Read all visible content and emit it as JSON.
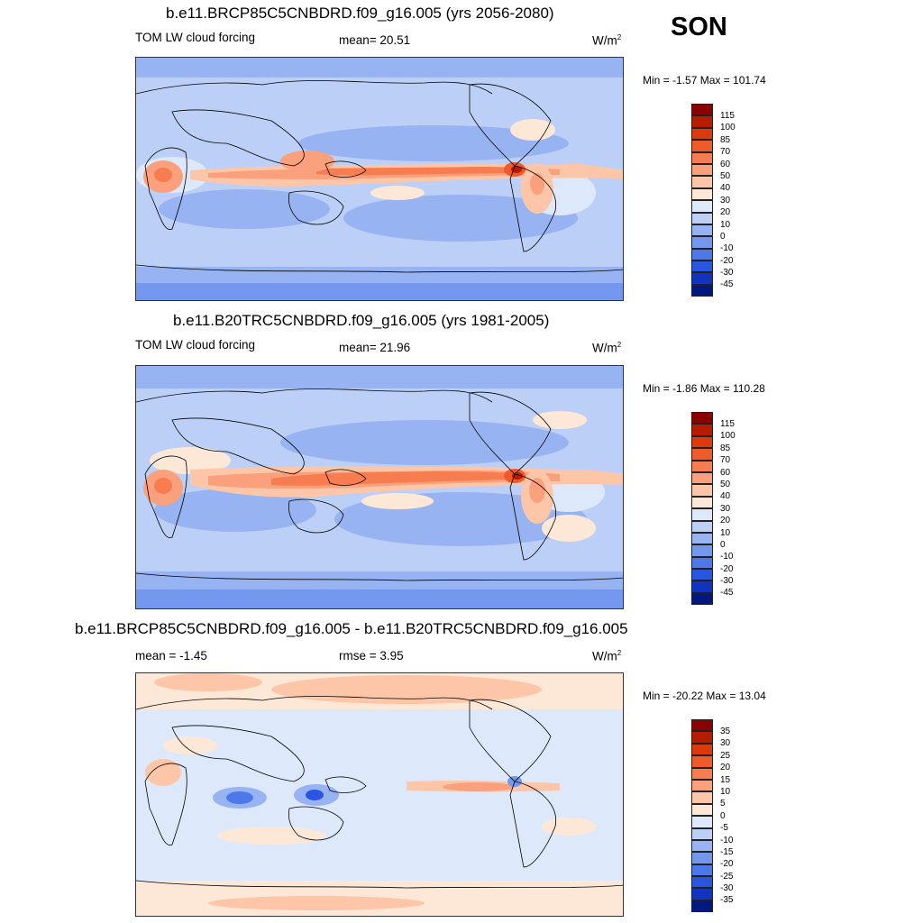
{
  "season": "SON",
  "panels": [
    {
      "title": "b.e11.BRCP85C5CNBDRD.f09_g16.005 (yrs 2056-2080)",
      "left_label": "TOM LW cloud forcing",
      "center_label": "mean=  20.51",
      "units": "W/m",
      "units_sup": "2",
      "minmax": "Min =  -1.57 Max = 101.74",
      "colorbar": {
        "labels": [
          "115",
          "100",
          "85",
          "70",
          "60",
          "50",
          "40",
          "30",
          "20",
          "10",
          "0",
          "-10",
          "-20",
          "-30",
          "-45"
        ],
        "colors": [
          "#8b0000",
          "#b81c00",
          "#dc3a0c",
          "#ef5a2a",
          "#f77c50",
          "#fba07c",
          "#fdc6a8",
          "#fde8d8",
          "#dde9fb",
          "#bcd0f7",
          "#97b3f1",
          "#7497ee",
          "#4d78ea",
          "#2a55e0",
          "#1233bf",
          "#02177f"
        ]
      }
    },
    {
      "title": "b.e11.B20TRC5CNBDRD.f09_g16.005 (yrs 1981-2005)",
      "left_label": "TOM LW cloud forcing",
      "center_label": "mean=  21.96",
      "units": "W/m",
      "units_sup": "2",
      "minmax": "Min =  -1.86 Max = 110.28",
      "colorbar": {
        "labels": [
          "115",
          "100",
          "85",
          "70",
          "60",
          "50",
          "40",
          "30",
          "20",
          "10",
          "0",
          "-10",
          "-20",
          "-30",
          "-45"
        ],
        "colors": [
          "#8b0000",
          "#b81c00",
          "#dc3a0c",
          "#ef5a2a",
          "#f77c50",
          "#fba07c",
          "#fdc6a8",
          "#fde8d8",
          "#dde9fb",
          "#bcd0f7",
          "#97b3f1",
          "#7497ee",
          "#4d78ea",
          "#2a55e0",
          "#1233bf",
          "#02177f"
        ]
      }
    },
    {
      "title": "b.e11.BRCP85C5CNBDRD.f09_g16.005 - b.e11.B20TRC5CNBDRD.f09_g16.005",
      "left_label": "mean =  -1.45",
      "center_label": "rmse =   3.95",
      "units": "W/m",
      "units_sup": "2",
      "minmax": "Min = -20.22 Max =  13.04",
      "colorbar": {
        "labels": [
          "35",
          "30",
          "25",
          "20",
          "15",
          "10",
          "5",
          "0",
          "-5",
          "-10",
          "-15",
          "-20",
          "-25",
          "-30",
          "-35"
        ],
        "colors": [
          "#8b0000",
          "#b81c00",
          "#dc3a0c",
          "#ef5a2a",
          "#f77c50",
          "#fba07c",
          "#fdc6a8",
          "#fde8d8",
          "#dde9fb",
          "#bcd0f7",
          "#97b3f1",
          "#7497ee",
          "#4d78ea",
          "#2a55e0",
          "#1233bf",
          "#02177f"
        ]
      }
    }
  ]
}
